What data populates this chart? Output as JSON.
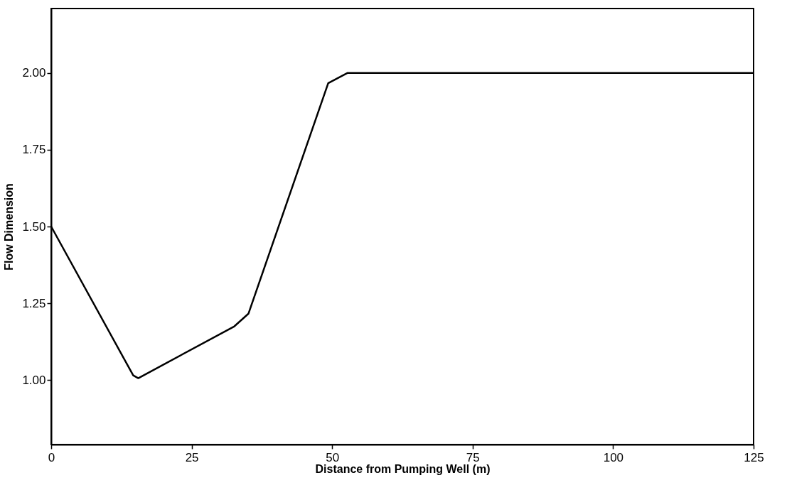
{
  "chart_data": {
    "type": "line",
    "xlabel": "Distance from Pumping Well (m)",
    "ylabel": "Flow Dimension",
    "x": [
      0,
      14.6,
      15.5,
      32.6,
      35.1,
      49.3,
      52.7,
      125
    ],
    "series": [
      {
        "color": "#000000",
        "values": [
          1.5,
          1.015,
          1.006,
          1.175,
          1.216,
          1.967,
          2.0,
          2.0
        ]
      }
    ],
    "xlim": [
      0,
      125
    ],
    "ylim": [
      0.79,
      2.21
    ],
    "xticks": [
      0,
      25,
      50,
      75,
      100,
      125
    ],
    "yticks": [
      {
        "value": 1,
        "label": "1.00"
      },
      1.25,
      {
        "value": 1.5,
        "label": "1.50"
      },
      1.75,
      {
        "value": 2,
        "label": "2.00"
      }
    ],
    "grid": false,
    "legend": false,
    "marker": "none",
    "line_style": "solid"
  }
}
